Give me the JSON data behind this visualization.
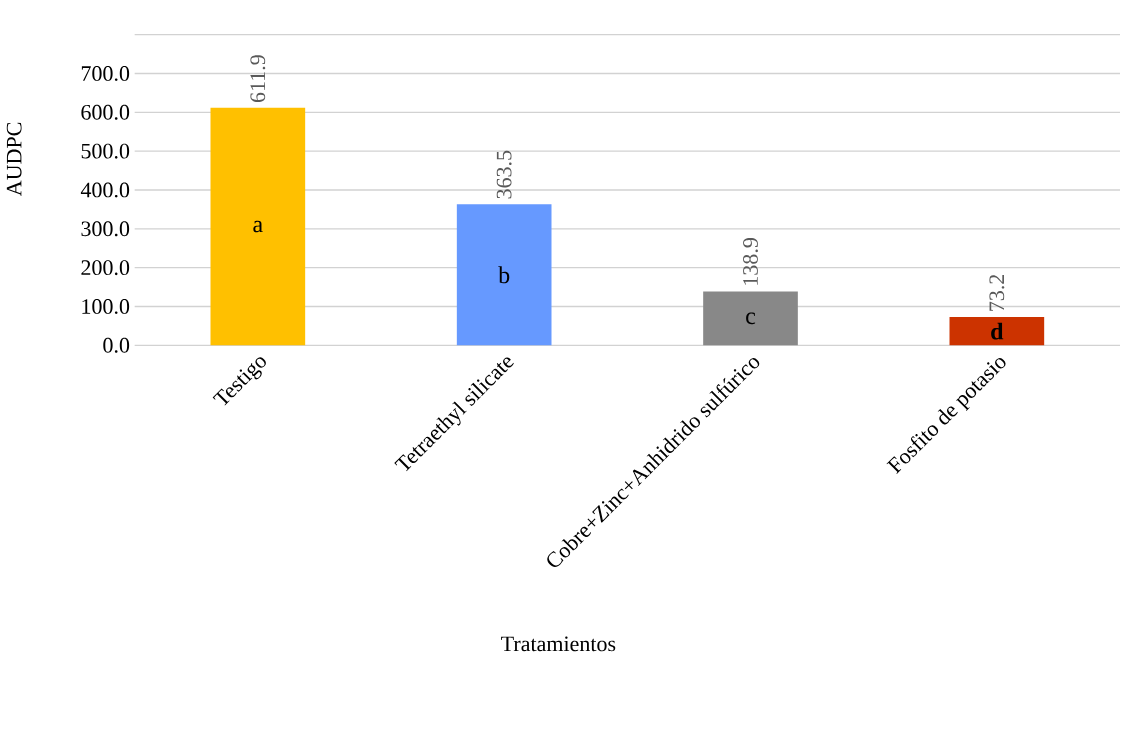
{
  "chart_data": {
    "type": "bar",
    "categories": [
      "Testigo",
      "Tetraethyl silicate",
      "Cobre+Zinc+Anhidrido sulfúrico",
      "Fosfito de potasio"
    ],
    "values": [
      611.9,
      363.5,
      138.9,
      73.2
    ],
    "colors": [
      "#ffc000",
      "#6699ff",
      "#888888",
      "#cc3300"
    ],
    "xlabel": "Tratamientos",
    "ylabel": "AUDPC",
    "ylim": [
      0,
      800
    ],
    "yticks": [
      {
        "value": 0,
        "label": "0.0"
      },
      {
        "value": 100,
        "label": "100.0"
      },
      {
        "value": 200,
        "label": "200.0"
      },
      {
        "value": 300,
        "label": "300.0"
      },
      {
        "value": 400,
        "label": "400.0"
      },
      {
        "value": 500,
        "label": "500.0"
      },
      {
        "value": 600,
        "label": "600.0"
      },
      {
        "value": 700,
        "label": "700.0"
      },
      {
        "value": 800,
        "label": null
      }
    ],
    "grid": "y",
    "data_labels": true,
    "annotations": [
      "a",
      "b",
      "c",
      "**d**"
    ]
  }
}
